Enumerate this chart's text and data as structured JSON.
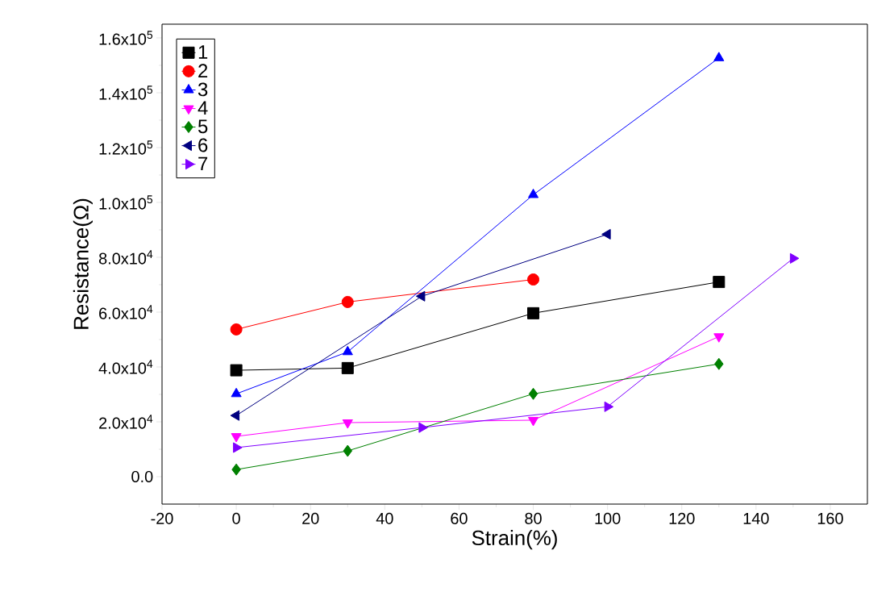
{
  "chart_data": {
    "type": "line",
    "xlabel": "Strain(%)",
    "ylabel": "Resistance(Ω)",
    "xlim": [
      -20,
      170
    ],
    "ylim": [
      -10000,
      165000
    ],
    "xticks": [
      -20,
      0,
      20,
      40,
      60,
      80,
      100,
      120,
      140,
      160
    ],
    "yticks": [
      {
        "value": 0,
        "label": "0.0"
      },
      {
        "value": 20000,
        "label": "2.0x10$^{4}$"
      },
      {
        "value": 40000,
        "label": "4.0x10$^{4}$"
      },
      {
        "value": 60000,
        "label": "6.0x10$^{4}$"
      },
      {
        "value": 80000,
        "label": "8.0x10$^{4}$"
      },
      {
        "value": 100000,
        "label": "1.0x10$^{5}$"
      },
      {
        "value": 120000,
        "label": "1.2x10$^{5}$"
      },
      {
        "value": 140000,
        "label": "1.4x10$^{5}$"
      },
      {
        "value": 160000,
        "label": "1.6x10$^{5}$"
      }
    ],
    "legend": "top left",
    "grid": false,
    "line_style": "solid",
    "series": [
      {
        "name": "1",
        "color": "#000000",
        "marker": "square",
        "x": [
          0,
          30,
          80,
          130
        ],
        "values": [
          38800,
          39600,
          59600,
          71000
        ]
      },
      {
        "name": "2",
        "color": "#ff0000",
        "marker": "circle",
        "x": [
          0,
          30,
          80
        ],
        "values": [
          53700,
          63700,
          71900
        ]
      },
      {
        "name": "3",
        "color": "#0000ff",
        "marker": "triangle",
        "x": [
          0,
          30,
          80,
          130
        ],
        "values": [
          30200,
          45500,
          102800,
          152700
        ]
      },
      {
        "name": "4",
        "color": "#ff00ff",
        "marker": "triangle down",
        "x": [
          0,
          30,
          80,
          130
        ],
        "values": [
          14700,
          19700,
          20600,
          51100
        ]
      },
      {
        "name": "5",
        "color": "#008000",
        "marker": "diamond",
        "x": [
          0,
          30,
          80,
          130
        ],
        "values": [
          2600,
          9400,
          30200,
          41100
        ]
      },
      {
        "name": "6",
        "color": "#000080",
        "marker": "triangle left",
        "x": [
          0,
          50,
          100
        ],
        "values": [
          22300,
          65800,
          88400
        ]
      },
      {
        "name": "7",
        "color": "#8000ff",
        "marker": "triangle right",
        "x": [
          0,
          50,
          100,
          150
        ],
        "values": [
          10600,
          17900,
          25500,
          79600
        ]
      }
    ]
  }
}
